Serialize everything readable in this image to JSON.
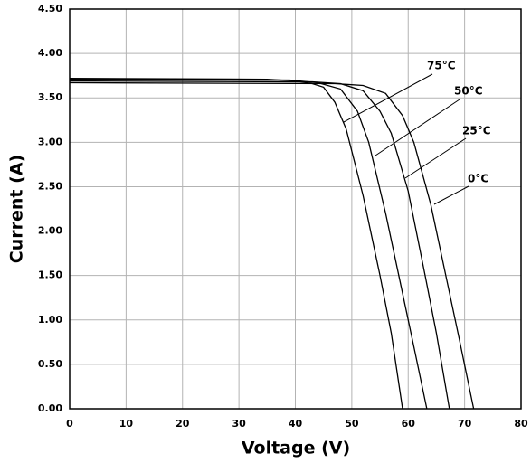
{
  "chart_data": {
    "type": "line",
    "x_label": "Voltage (V)",
    "y_label": "Current (A)",
    "xlim": [
      0,
      80
    ],
    "xticks": [
      0,
      10,
      20,
      30,
      40,
      50,
      60,
      70,
      80
    ],
    "ylim": [
      0,
      4.5
    ],
    "yticks": [
      {
        "value": 0,
        "label": "0.00"
      },
      {
        "value": 0.5,
        "label": "0.50"
      },
      {
        "value": 1,
        "label": "1.00"
      },
      {
        "value": 1.5,
        "label": "1.50"
      },
      {
        "value": 2,
        "label": "2.00"
      },
      {
        "value": 2.5,
        "label": "2.50"
      },
      {
        "value": 3,
        "label": "3.00"
      },
      {
        "value": 3.5,
        "label": "3.50"
      },
      {
        "value": 4,
        "label": "4.00"
      },
      {
        "value": 4.5,
        "label": "4.50"
      }
    ],
    "grid": true,
    "series": [
      {
        "name": "75°C",
        "color": "#000000",
        "x": [
          0,
          35,
          40,
          43,
          45,
          47,
          49,
          52,
          55,
          57,
          59
        ],
        "values": [
          3.72,
          3.71,
          3.69,
          3.66,
          3.62,
          3.45,
          3.15,
          2.4,
          1.5,
          0.85,
          0
        ]
      },
      {
        "name": "50°C",
        "color": "#000000",
        "x": [
          0,
          39,
          44,
          48,
          51,
          53,
          56,
          59,
          61,
          63.3
        ],
        "values": [
          3.71,
          3.7,
          3.67,
          3.6,
          3.35,
          3.0,
          2.2,
          1.3,
          0.7,
          0
        ]
      },
      {
        "name": "25°C",
        "color": "#000000",
        "x": [
          0,
          43,
          48,
          52,
          55,
          57,
          60,
          63,
          65,
          67.3
        ],
        "values": [
          3.69,
          3.68,
          3.66,
          3.58,
          3.35,
          3.1,
          2.45,
          1.5,
          0.85,
          0
        ]
      },
      {
        "name": "0°C",
        "color": "#000000",
        "x": [
          0,
          47,
          52,
          56,
          59,
          61,
          64,
          67,
          69,
          71.6
        ],
        "values": [
          3.67,
          3.66,
          3.64,
          3.55,
          3.3,
          3.0,
          2.3,
          1.4,
          0.8,
          0
        ]
      }
    ]
  }
}
